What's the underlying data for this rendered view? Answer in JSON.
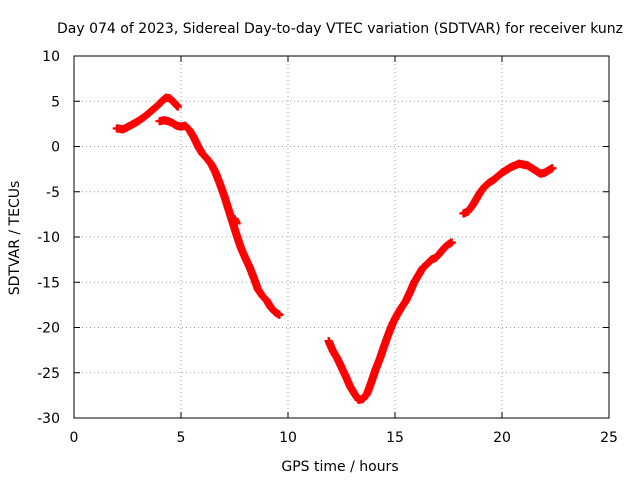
{
  "chart_data": {
    "type": "scatter",
    "title": "Day 074 of 2023, Sidereal Day-to-day VTEC variation (SDTVAR) for receiver kunz",
    "xlabel": "GPS time / hours",
    "ylabel": "SDTVAR / TECUs",
    "xlim": [
      0,
      25
    ],
    "ylim": [
      -30,
      10
    ],
    "xticks": [
      0,
      5,
      10,
      15,
      20,
      25
    ],
    "yticks": [
      -30,
      -25,
      -20,
      -15,
      -10,
      -5,
      0,
      5,
      10
    ],
    "grid": true,
    "marker": "plus",
    "color": "#ff0000",
    "segments": [
      {
        "x": [
          2.0,
          2.3,
          2.7,
          3.0,
          3.3,
          3.6,
          3.9,
          4.1,
          4.3,
          4.5,
          4.7,
          4.85
        ],
        "y": [
          2.0,
          1.9,
          2.4,
          2.8,
          3.3,
          3.9,
          4.5,
          5.0,
          5.4,
          5.3,
          4.8,
          4.4
        ]
      },
      {
        "x": [
          4.0,
          4.2,
          4.4,
          4.6,
          4.8,
          5.0,
          5.2,
          5.4,
          5.6,
          5.8,
          6.0,
          6.2,
          6.4,
          6.6,
          6.8,
          7.0,
          7.2,
          7.4,
          7.6,
          7.8,
          8.0,
          8.2,
          8.4,
          8.6,
          8.8,
          9.0,
          9.2,
          9.4,
          9.6
        ],
        "y": [
          2.8,
          2.9,
          2.8,
          2.6,
          2.3,
          2.2,
          2.3,
          1.8,
          1.0,
          0.0,
          -0.8,
          -1.3,
          -1.9,
          -2.8,
          -4.0,
          -5.3,
          -6.8,
          -8.3,
          -9.8,
          -11.2,
          -12.3,
          -13.3,
          -14.5,
          -15.8,
          -16.5,
          -17.0,
          -17.8,
          -18.3,
          -18.6
        ]
      },
      {
        "x": [
          7.5,
          7.6
        ],
        "y": [
          -8.0,
          -8.5
        ]
      },
      {
        "x": [
          11.9,
          12.1,
          12.3,
          12.5,
          12.7,
          12.9,
          13.1,
          13.3,
          13.5,
          13.7,
          13.9,
          14.1,
          14.3,
          14.5,
          14.7,
          14.9,
          15.1,
          15.3,
          15.5,
          15.7,
          15.9,
          16.1,
          16.3,
          16.5,
          16.7,
          16.9,
          17.1,
          17.3,
          17.5,
          17.65
        ],
        "y": [
          -21.5,
          -22.6,
          -23.4,
          -24.4,
          -25.4,
          -26.5,
          -27.3,
          -28.0,
          -27.9,
          -27.3,
          -26.0,
          -24.6,
          -23.4,
          -22.0,
          -20.7,
          -19.5,
          -18.6,
          -17.8,
          -17.1,
          -16.1,
          -15.0,
          -14.2,
          -13.4,
          -13.0,
          -12.5,
          -12.3,
          -11.8,
          -11.2,
          -10.8,
          -10.6
        ]
      },
      {
        "x": [
          18.2,
          18.4,
          18.6,
          18.8,
          19.0,
          19.2,
          19.4,
          19.6,
          19.8,
          20.0,
          20.2,
          20.4,
          20.6,
          20.8,
          21.0,
          21.2,
          21.4,
          21.6,
          21.8,
          22.0,
          22.2,
          22.35
        ],
        "y": [
          -7.4,
          -7.2,
          -6.6,
          -5.8,
          -5.0,
          -4.4,
          -4.0,
          -3.7,
          -3.3,
          -2.9,
          -2.6,
          -2.3,
          -2.1,
          -1.9,
          -2.0,
          -2.1,
          -2.4,
          -2.7,
          -3.0,
          -2.9,
          -2.6,
          -2.4
        ]
      }
    ]
  }
}
